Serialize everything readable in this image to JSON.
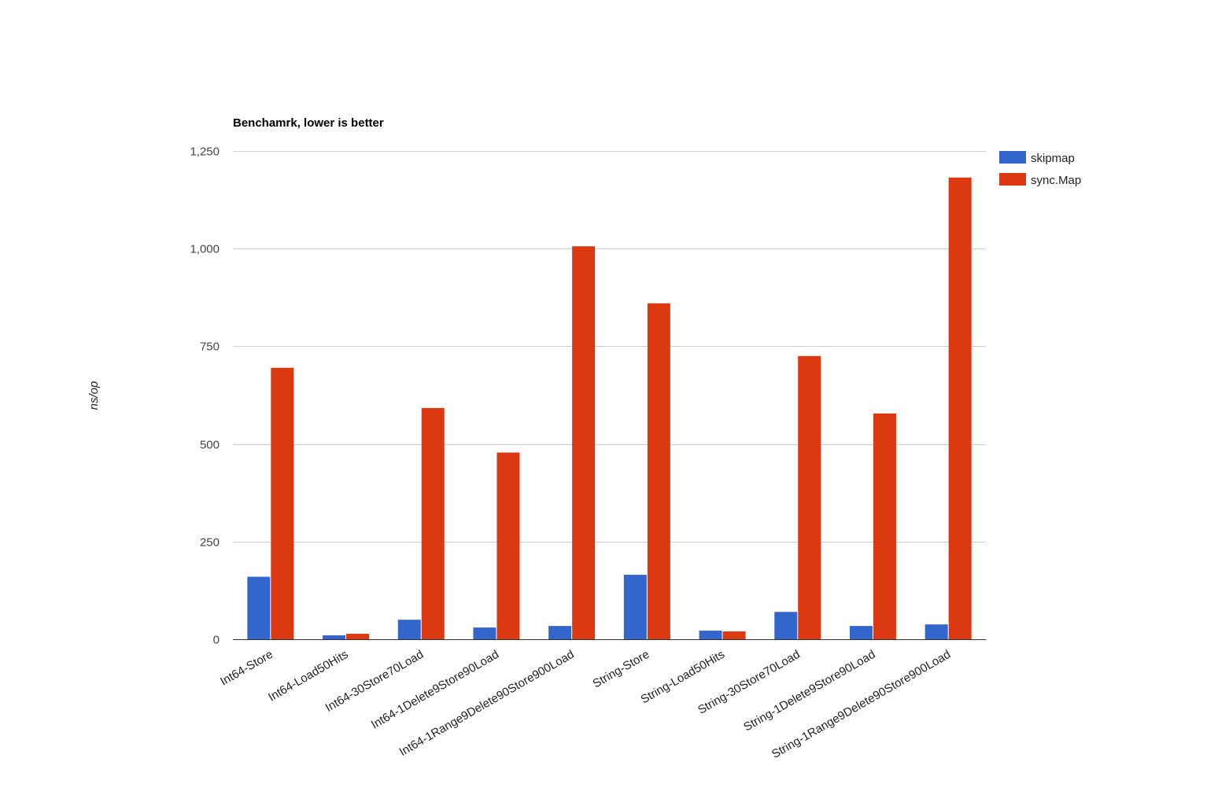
{
  "chart_data": {
    "type": "bar",
    "title": "Benchamrk, lower is better",
    "xlabel": "",
    "ylabel": "ns/op",
    "ylim": [
      0,
      1250
    ],
    "yticks": [
      0,
      250,
      500,
      750,
      1000,
      1250
    ],
    "ytick_labels": [
      "0",
      "250",
      "500",
      "750",
      "1,000",
      "1,250"
    ],
    "grid": true,
    "legend_position": "right",
    "categories": [
      "Int64-Store",
      "Int64-Load50Hits",
      "Int64-30Store70Load",
      "Int64-1Delete9Store90Load",
      "Int64-1Range9Delete90Store900Load",
      "String-Store",
      "String-Load50Hits",
      "String-30Store70Load",
      "String-1Delete9Store90Load",
      "String-1Range9Delete90Store900Load"
    ],
    "series": [
      {
        "name": "skipmap",
        "color": "#3366cc",
        "values": [
          160,
          10,
          50,
          30,
          34,
          165,
          22,
          70,
          34,
          38
        ]
      },
      {
        "name": "sync.Map",
        "color": "#dc3912",
        "values": [
          695,
          14,
          592,
          478,
          1006,
          860,
          20,
          725,
          578,
          1182
        ]
      }
    ]
  }
}
